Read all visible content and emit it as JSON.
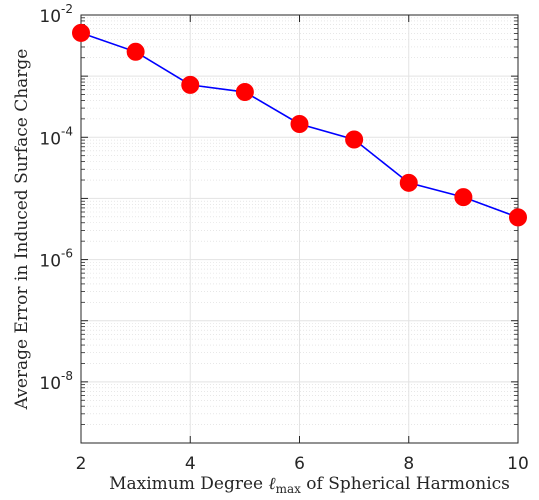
{
  "chart_data": {
    "type": "line",
    "title": "",
    "xlabel": {
      "prefix": "Maximum Degree ",
      "symbol": "ℓ",
      "subscript": "max",
      "suffix": " of Spherical Harmonics"
    },
    "ylabel": "Average Error in Induced Surface Charge",
    "xlim": [
      2,
      10
    ],
    "ylim": [
      1e-09,
      0.01
    ],
    "yscale": "log",
    "grid": true,
    "xticks": [
      2,
      4,
      6,
      8,
      10
    ],
    "yticks": [
      {
        "value": 0.01,
        "base": "10",
        "exp": "-2"
      },
      {
        "value": 0.0001,
        "base": "10",
        "exp": "-4"
      },
      {
        "value": 1e-06,
        "base": "10",
        "exp": "-6"
      },
      {
        "value": 1e-08,
        "base": "10",
        "exp": "-8"
      }
    ],
    "series": [
      {
        "x": [
          2,
          3,
          4,
          5,
          6,
          7,
          8,
          9,
          10
        ],
        "y": [
          0.0051,
          0.0025,
          0.00072,
          0.00055,
          0.000165,
          9.2e-05,
          1.8e-05,
          1.05e-05,
          4.9e-06
        ],
        "line_color": "#0000ff",
        "marker_color": "#ff0000",
        "marker": "circle"
      }
    ]
  }
}
